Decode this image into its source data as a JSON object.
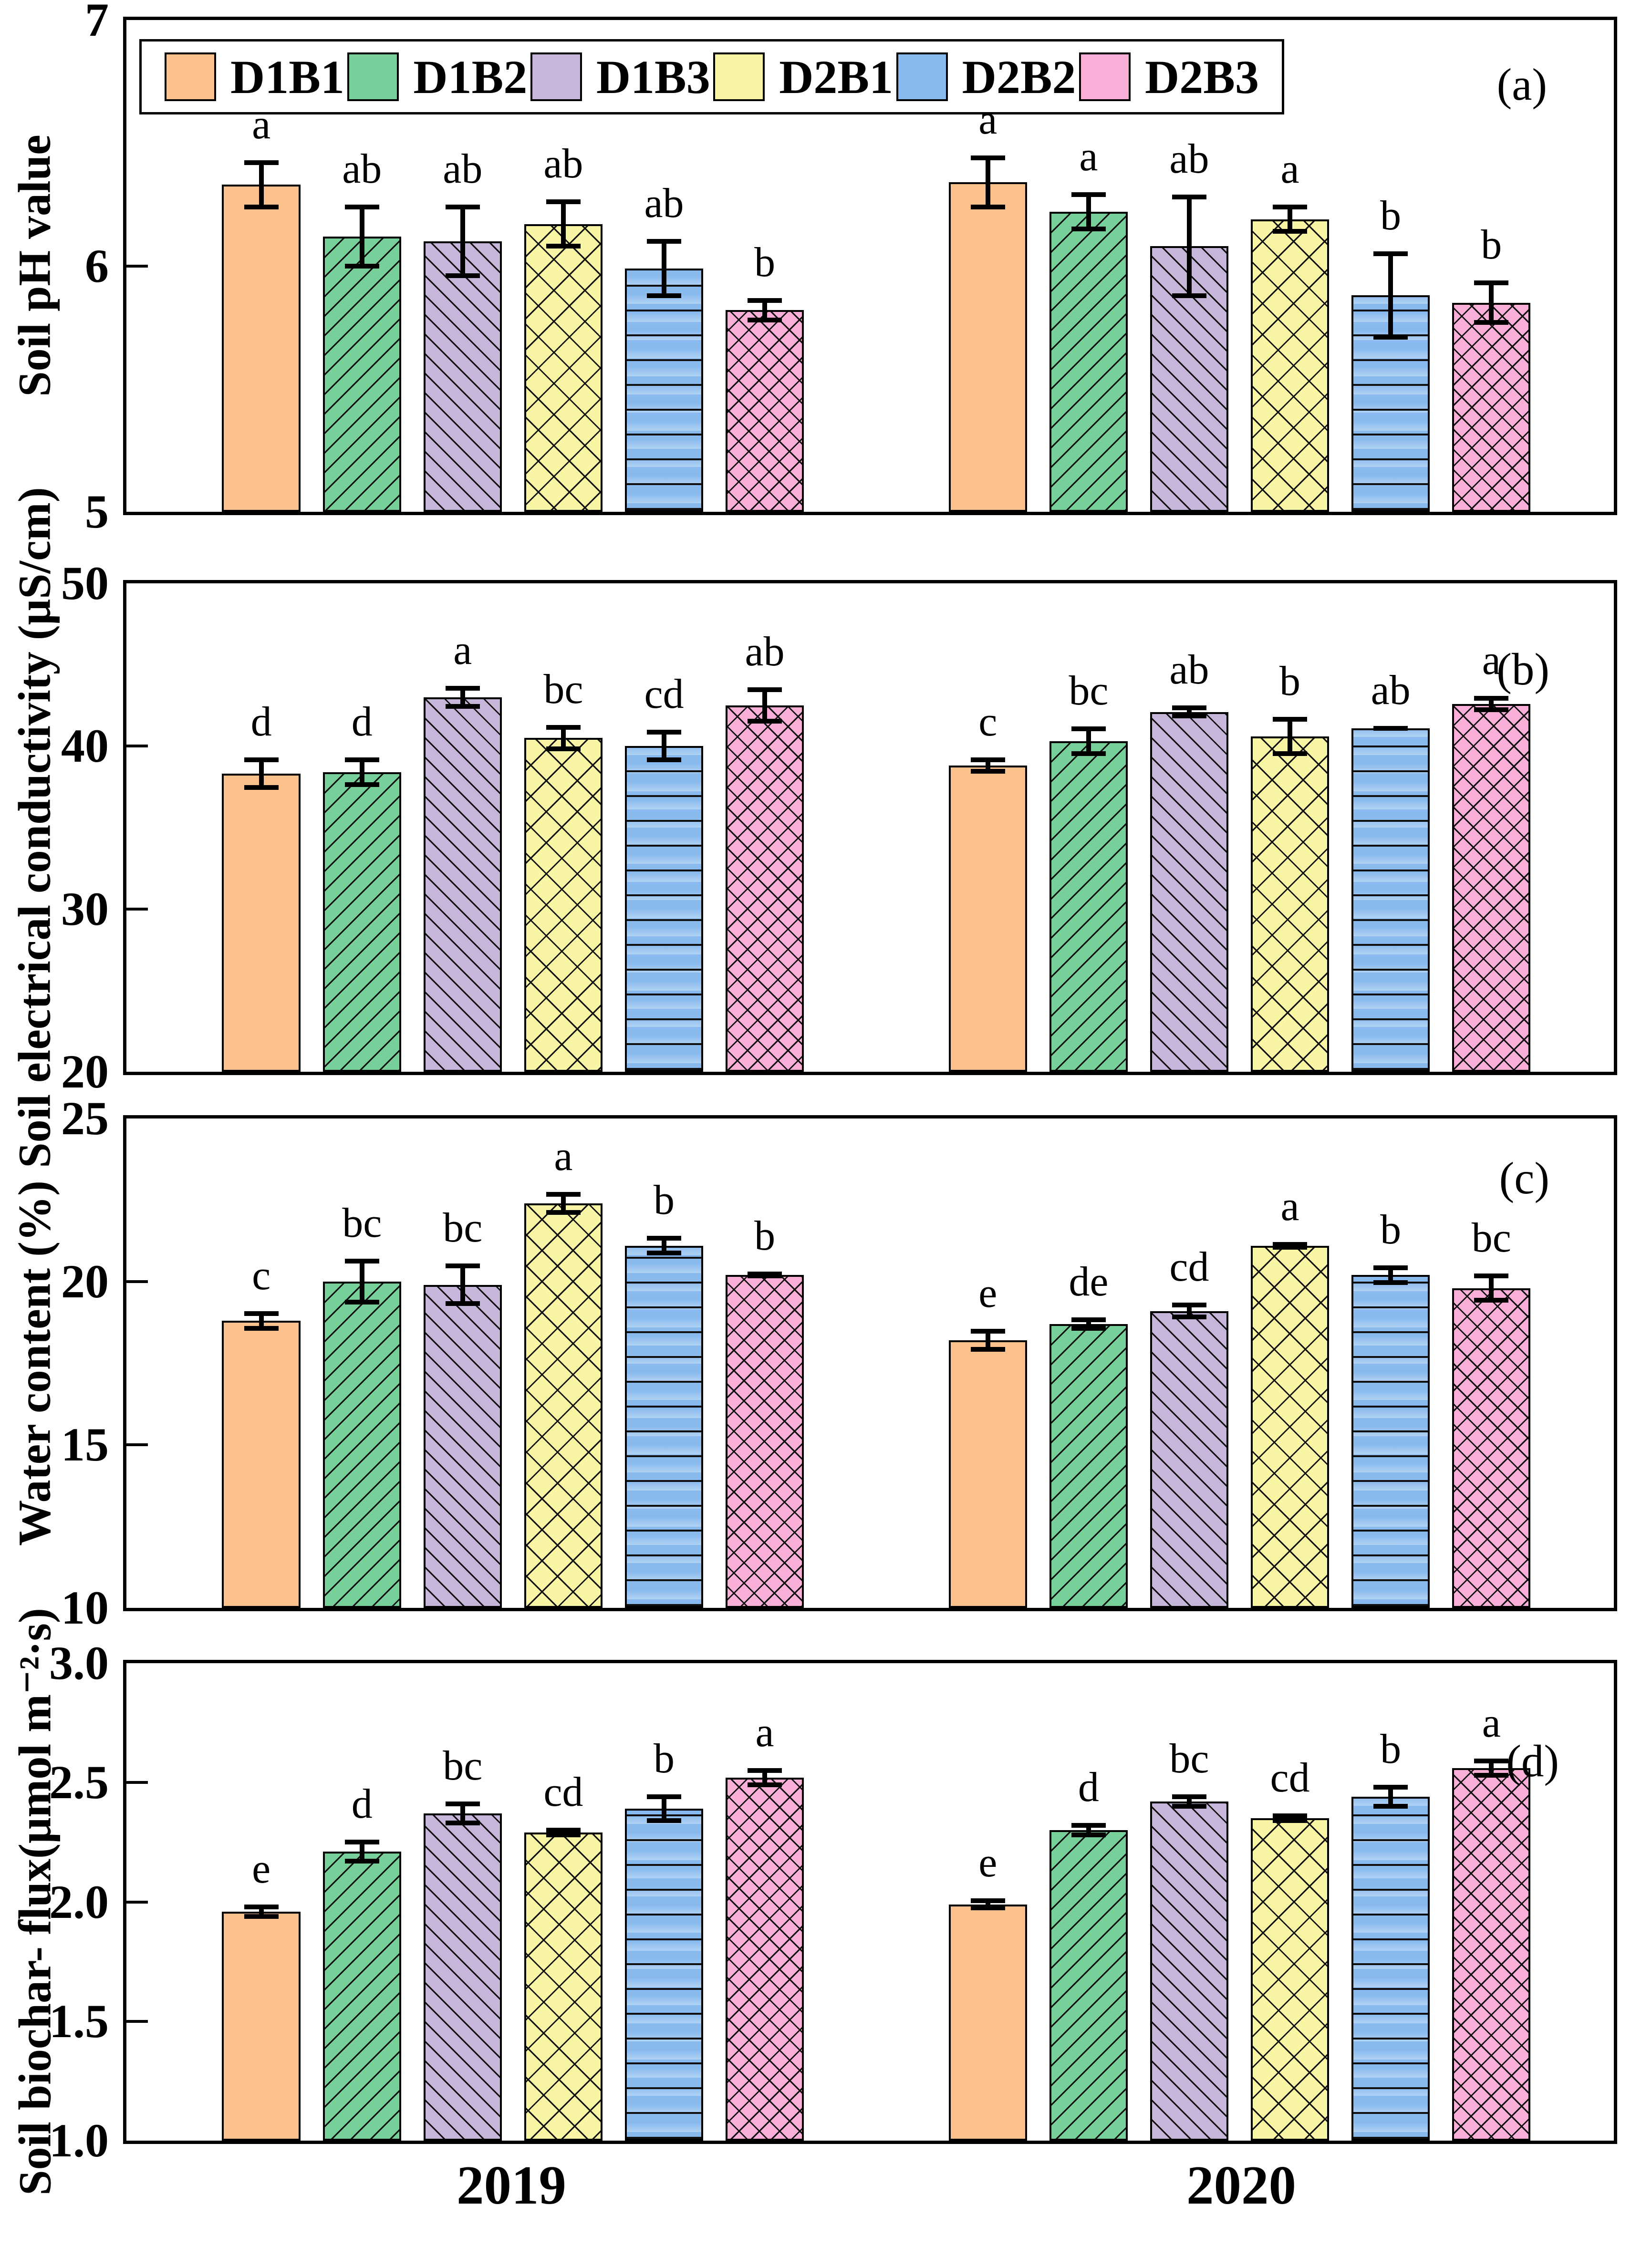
{
  "figure": {
    "x_axis": {
      "group_labels": [
        "2019",
        "2020"
      ]
    },
    "series": [
      {
        "key": "D1B1",
        "label": "D1B1",
        "color": "#FBC28D",
        "hatch": "none"
      },
      {
        "key": "D1B2",
        "label": "D1B2",
        "color": "#77CF9A",
        "hatch": "diag-up"
      },
      {
        "key": "D1B3",
        "label": "D1B3",
        "color": "#C6B6D9",
        "hatch": "diag-down"
      },
      {
        "key": "D2B1",
        "label": "D2B1",
        "color": "#F8F6A4",
        "hatch": "cross"
      },
      {
        "key": "D2B2",
        "label": "D2B2",
        "color": "#88BAEE",
        "hatch": "horizontal"
      },
      {
        "key": "D2B3",
        "label": "D2B3",
        "color": "#F9AFD7",
        "hatch": "cross-dense"
      }
    ],
    "edge_color": "#000000",
    "background_color": "#ffffff"
  },
  "chart_data": [
    {
      "type": "bar",
      "tag": "(a)",
      "ylabel": "Soil pH value",
      "ylim": [
        5,
        7
      ],
      "yticks": [
        "5",
        "6",
        "7"
      ],
      "categories": [
        "2019",
        "2020"
      ],
      "legend_visible": true,
      "series": [
        {
          "name": "D1B1",
          "values": [
            6.33,
            6.34
          ],
          "errors": [
            0.1,
            0.11
          ],
          "letters": [
            "a",
            "a"
          ]
        },
        {
          "name": "D1B2",
          "values": [
            6.12,
            6.22
          ],
          "errors": [
            0.13,
            0.08
          ],
          "letters": [
            "ab",
            "a"
          ]
        },
        {
          "name": "D1B3",
          "values": [
            6.1,
            6.08
          ],
          "errors": [
            0.15,
            0.21
          ],
          "letters": [
            "ab",
            "ab"
          ]
        },
        {
          "name": "D2B1",
          "values": [
            6.17,
            6.19
          ],
          "errors": [
            0.1,
            0.06
          ],
          "letters": [
            "ab",
            "a"
          ]
        },
        {
          "name": "D2B2",
          "values": [
            5.99,
            5.88
          ],
          "errors": [
            0.12,
            0.18
          ],
          "letters": [
            "ab",
            "b"
          ]
        },
        {
          "name": "D2B3",
          "values": [
            5.82,
            5.85
          ],
          "errors": [
            0.05,
            0.09
          ],
          "letters": [
            "b",
            "b"
          ]
        }
      ]
    },
    {
      "type": "bar",
      "tag": "(b)",
      "ylabel": "Soil electrical conductivity (μS/cm)",
      "ylim": [
        20,
        50
      ],
      "yticks": [
        "20",
        "30",
        "40",
        "50"
      ],
      "categories": [
        "2019",
        "2020"
      ],
      "legend_visible": false,
      "series": [
        {
          "name": "D1B1",
          "values": [
            38.3,
            38.8
          ],
          "errors": [
            1.0,
            0.5
          ],
          "letters": [
            "d",
            "c"
          ]
        },
        {
          "name": "D1B2",
          "values": [
            38.4,
            40.3
          ],
          "errors": [
            0.9,
            0.9
          ],
          "letters": [
            "d",
            "bc"
          ]
        },
        {
          "name": "D1B3",
          "values": [
            43.0,
            42.1
          ],
          "errors": [
            0.7,
            0.4
          ],
          "letters": [
            "a",
            "ab"
          ]
        },
        {
          "name": "D2B1",
          "values": [
            40.5,
            40.6
          ],
          "errors": [
            0.8,
            1.2
          ],
          "letters": [
            "bc",
            "b"
          ]
        },
        {
          "name": "D2B2",
          "values": [
            40.0,
            41.1
          ],
          "errors": [
            1.0,
            0.15
          ],
          "letters": [
            "cd",
            "ab"
          ]
        },
        {
          "name": "D2B3",
          "values": [
            42.5,
            42.6
          ],
          "errors": [
            1.1,
            0.5
          ],
          "letters": [
            "ab",
            "a"
          ]
        }
      ]
    },
    {
      "type": "bar",
      "tag": "(c)",
      "ylabel": "Water content (%)",
      "ylim": [
        10,
        25
      ],
      "yticks": [
        "10",
        "15",
        "20",
        "25"
      ],
      "categories": [
        "2019",
        "2020"
      ],
      "legend_visible": false,
      "series": [
        {
          "name": "D1B1",
          "values": [
            18.8,
            18.2
          ],
          "errors": [
            0.3,
            0.35
          ],
          "letters": [
            "c",
            "e"
          ]
        },
        {
          "name": "D1B2",
          "values": [
            20.0,
            18.7
          ],
          "errors": [
            0.7,
            0.2
          ],
          "letters": [
            "bc",
            "de"
          ]
        },
        {
          "name": "D1B3",
          "values": [
            19.9,
            19.1
          ],
          "errors": [
            0.65,
            0.25
          ],
          "letters": [
            "bc",
            "cd"
          ]
        },
        {
          "name": "D2B1",
          "values": [
            22.4,
            21.1
          ],
          "errors": [
            0.35,
            0.12
          ],
          "letters": [
            "a",
            "a"
          ]
        },
        {
          "name": "D2B2",
          "values": [
            21.1,
            20.2
          ],
          "errors": [
            0.3,
            0.3
          ],
          "letters": [
            "b",
            "b"
          ]
        },
        {
          "name": "D2B3",
          "values": [
            20.2,
            19.8
          ],
          "errors": [
            0.1,
            0.45
          ],
          "letters": [
            "b",
            "bc"
          ]
        }
      ]
    },
    {
      "type": "bar",
      "tag": "(d)",
      "ylabel": "Soil biochar- flux(μmol m⁻²·s)",
      "ylim": [
        1.0,
        3.0
      ],
      "yticks": [
        "1.0",
        "1.5",
        "2.0",
        "2.5",
        "3.0"
      ],
      "categories": [
        "2019",
        "2020"
      ],
      "legend_visible": false,
      "series": [
        {
          "name": "D1B1",
          "values": [
            1.96,
            1.99
          ],
          "errors": [
            0.03,
            0.025
          ],
          "letters": [
            "e",
            "e"
          ]
        },
        {
          "name": "D1B2",
          "values": [
            2.21,
            2.3
          ],
          "errors": [
            0.05,
            0.03
          ],
          "letters": [
            "d",
            "d"
          ]
        },
        {
          "name": "D1B3",
          "values": [
            2.37,
            2.42
          ],
          "errors": [
            0.05,
            0.03
          ],
          "letters": [
            "bc",
            "bc"
          ]
        },
        {
          "name": "D2B1",
          "values": [
            2.29,
            2.35
          ],
          "errors": [
            0.02,
            0.02
          ],
          "letters": [
            "cd",
            "cd"
          ]
        },
        {
          "name": "D2B2",
          "values": [
            2.39,
            2.44
          ],
          "errors": [
            0.06,
            0.05
          ],
          "letters": [
            "b",
            "b"
          ]
        },
        {
          "name": "D2B3",
          "values": [
            2.52,
            2.56
          ],
          "errors": [
            0.04,
            0.04
          ],
          "letters": [
            "a",
            "a"
          ]
        }
      ]
    }
  ]
}
